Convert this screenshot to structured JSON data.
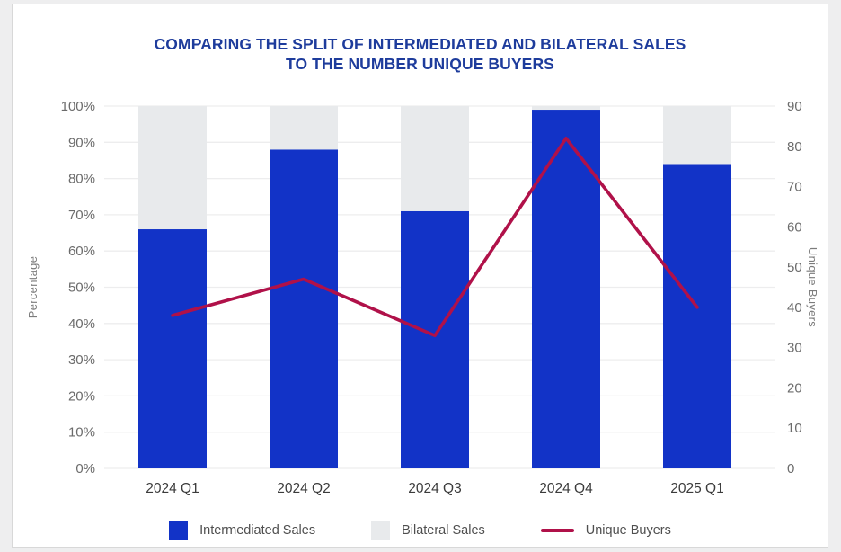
{
  "title": {
    "line1": "COMPARING THE SPLIT OF INTERMEDIATED AND BILATERAL SALES",
    "line2": "TO THE NUMBER UNIQUE BUYERS",
    "color": "#1e3c9c"
  },
  "colors": {
    "intermediated_blue": "#1233c7",
    "bilateral_gray": "#e8eaec",
    "unique_buyers_line": "#b01149",
    "gridline": "#ededee",
    "card_border": "#d8d8d8"
  },
  "chart_data": {
    "type": "bar",
    "subtype": "stacked-100-percent-with-line-overlay",
    "title": "COMPARING THE SPLIT OF INTERMEDIATED AND BILATERAL SALES TO THE NUMBER UNIQUE BUYERS",
    "categories": [
      "2024 Q1",
      "2024 Q2",
      "2024 Q3",
      "2024 Q4",
      "2025 Q1"
    ],
    "series": [
      {
        "name": "Intermediated Sales",
        "kind": "bar",
        "axis": "left",
        "color": "#1233c7",
        "values": [
          66,
          88,
          71,
          99,
          84
        ]
      },
      {
        "name": "Bilateral Sales",
        "kind": "bar",
        "axis": "left",
        "color": "#e8eaec",
        "values": [
          34,
          12,
          29,
          1,
          16
        ]
      },
      {
        "name": "Unique Buyers",
        "kind": "line",
        "axis": "right",
        "color": "#b01149",
        "values": [
          38,
          47,
          33,
          82,
          40
        ]
      }
    ],
    "left_axis": {
      "title": "Percentage",
      "min": 0,
      "max": 100,
      "step": 10,
      "suffix": "%"
    },
    "right_axis": {
      "title": "Unique Buyers",
      "min": 0,
      "max": 90,
      "step": 10,
      "suffix": ""
    },
    "grid": "horizontal",
    "legend_position": "bottom"
  }
}
